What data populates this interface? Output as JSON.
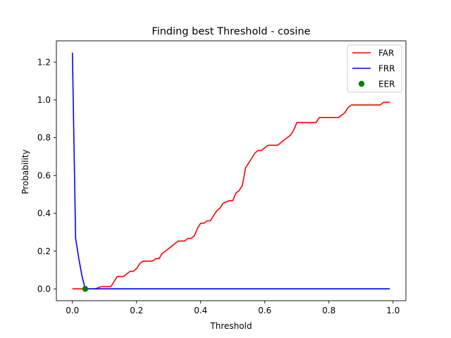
{
  "chart_data": {
    "type": "line",
    "title": "Finding best Threshold - cosine",
    "xlabel": "Threshold",
    "ylabel": "Probability",
    "xlim": [
      -0.05,
      1.04
    ],
    "ylim": [
      -0.0625,
      1.3125
    ],
    "xticks": [
      "0.0",
      "0.2",
      "0.4",
      "0.6",
      "0.8",
      "1.0"
    ],
    "xtick_values": [
      0.0,
      0.2,
      0.4,
      0.6,
      0.8,
      1.0
    ],
    "yticks": [
      "0.0",
      "0.2",
      "0.4",
      "0.6",
      "0.8",
      "1.0",
      "1.2"
    ],
    "ytick_values": [
      0.0,
      0.2,
      0.4,
      0.6,
      0.8,
      1.0,
      1.2
    ],
    "grid": false,
    "legend_position": "top-right",
    "series": [
      {
        "name": "FAR",
        "color": "#ff0000",
        "x": [
          0.0,
          0.07,
          0.09,
          0.12,
          0.14,
          0.16,
          0.17,
          0.18,
          0.19,
          0.2,
          0.21,
          0.22,
          0.23,
          0.25,
          0.26,
          0.27,
          0.28,
          0.3,
          0.32,
          0.33,
          0.35,
          0.36,
          0.37,
          0.38,
          0.39,
          0.4,
          0.41,
          0.42,
          0.43,
          0.44,
          0.45,
          0.46,
          0.47,
          0.49,
          0.5,
          0.51,
          0.52,
          0.53,
          0.54,
          0.55,
          0.56,
          0.57,
          0.58,
          0.59,
          0.6,
          0.61,
          0.62,
          0.64,
          0.65,
          0.66,
          0.67,
          0.68,
          0.69,
          0.7,
          0.72,
          0.75,
          0.76,
          0.77,
          0.78,
          0.8,
          0.82,
          0.83,
          0.84,
          0.85,
          0.86,
          0.87,
          0.88,
          0.9,
          0.92,
          0.94,
          0.95,
          0.96,
          0.97,
          0.99
        ],
        "values": [
          0.0,
          0.0,
          0.012,
          0.012,
          0.066,
          0.066,
          0.08,
          0.093,
          0.093,
          0.107,
          0.133,
          0.147,
          0.147,
          0.147,
          0.16,
          0.16,
          0.187,
          0.213,
          0.24,
          0.253,
          0.253,
          0.267,
          0.267,
          0.28,
          0.32,
          0.347,
          0.347,
          0.36,
          0.36,
          0.387,
          0.413,
          0.427,
          0.453,
          0.467,
          0.467,
          0.507,
          0.52,
          0.547,
          0.64,
          0.667,
          0.693,
          0.72,
          0.733,
          0.733,
          0.747,
          0.76,
          0.76,
          0.76,
          0.773,
          0.787,
          0.8,
          0.813,
          0.84,
          0.88,
          0.88,
          0.88,
          0.88,
          0.907,
          0.907,
          0.907,
          0.907,
          0.907,
          0.92,
          0.933,
          0.96,
          0.973,
          0.973,
          0.973,
          0.973,
          0.973,
          0.973,
          0.973,
          0.987,
          0.987
        ]
      },
      {
        "name": "FRR",
        "color": "#0000ff",
        "x": [
          0.0,
          0.01,
          0.02,
          0.03,
          0.04,
          0.05,
          0.99
        ],
        "values": [
          1.25,
          0.267,
          0.16,
          0.067,
          0.0,
          0.0,
          0.0
        ]
      }
    ],
    "points": [
      {
        "name": "EER",
        "color": "#008000",
        "x": 0.04,
        "y": 0.0
      }
    ]
  }
}
